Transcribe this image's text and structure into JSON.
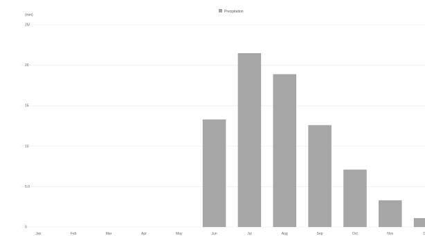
{
  "chart_data": {
    "type": "bar",
    "title": "",
    "unit_label": "(mm)",
    "legend": {
      "label": "Precipitation",
      "color": "#a6a6a6",
      "position": "top-center"
    },
    "categories": [
      "Jan",
      "Feb",
      "Mar",
      "Apr",
      "May",
      "Jun",
      "Jul",
      "Aug",
      "Sep",
      "Oct",
      "Nov",
      "Dec"
    ],
    "series": [
      {
        "name": "Precipitation",
        "values": [
          0,
          0,
          0,
          0,
          0,
          13.3,
          21.5,
          18.9,
          12.6,
          7.1,
          3.3,
          1.1
        ]
      }
    ],
    "y_ticks": [
      0,
      5,
      10,
      15,
      20,
      25
    ],
    "y_tick_labels": [
      "0",
      "5.0",
      "10",
      "15",
      "20",
      "25/"
    ],
    "x_tick_labels": [
      "Jan",
      "Feb",
      "Mar",
      "Apr",
      "May",
      "Jun",
      "Jul",
      "Aug",
      "Sep",
      "Oct",
      "Nov",
      "De"
    ],
    "ylim": [
      0,
      25
    ],
    "grid": true,
    "bar_color": "#a6a6a6",
    "grid_color": "#ececec"
  }
}
